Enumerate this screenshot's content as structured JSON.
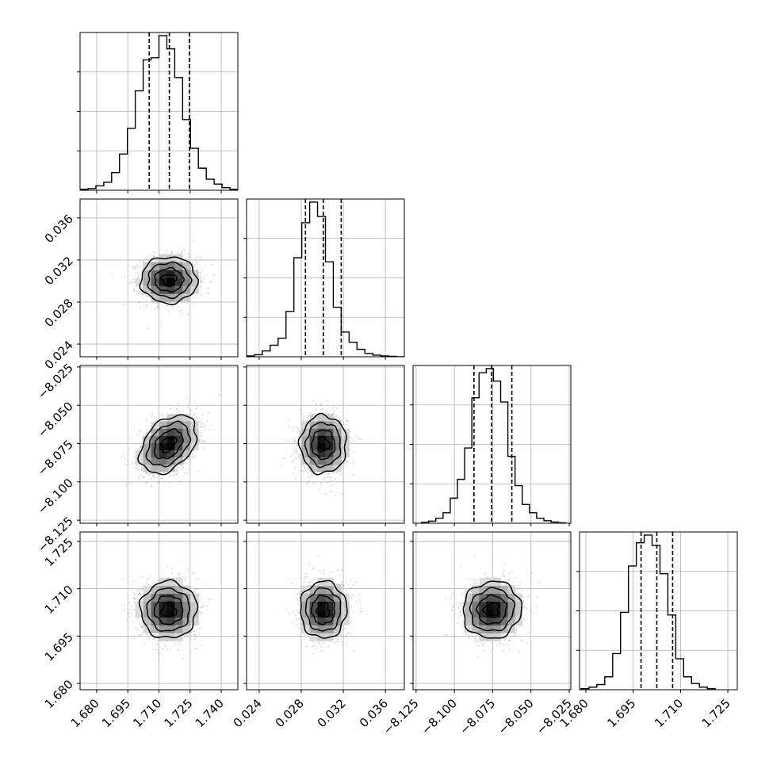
{
  "chart_data": {
    "type": "corner",
    "parameters": [
      {
        "index": 0,
        "range": [
          1.672,
          1.748
        ],
        "ticks": [
          "1.680",
          "1.695",
          "1.710",
          "1.725",
          "1.740"
        ],
        "quantiles": [
          1.7053,
          1.715,
          1.7247
        ],
        "hist": {
          "edges_start": 1.672,
          "bin_width": 0.0038,
          "counts": [
            2,
            4,
            10,
            18,
            40,
            82,
            140,
            225,
            295,
            300,
            350,
            320,
            255,
            160,
            95,
            50,
            25,
            14,
            6,
            2
          ]
        }
      },
      {
        "index": 1,
        "range": [
          0.0228,
          0.0378
        ],
        "ticks": [
          "0.024",
          "0.028",
          "0.032",
          "0.036"
        ],
        "quantiles": [
          0.0284,
          0.0301,
          0.0318
        ],
        "hist": {
          "edges_start": 0.0228,
          "bin_width": 0.00075,
          "counts": [
            2,
            5,
            14,
            28,
            45,
            110,
            240,
            325,
            375,
            340,
            230,
            120,
            60,
            35,
            18,
            8,
            4,
            2,
            1,
            0
          ]
        }
      },
      {
        "index": 2,
        "range": [
          -8.127,
          -8.024
        ],
        "ticks": [
          "-8.125",
          "-8.100",
          "-8.075",
          "-8.050",
          "-8.025"
        ],
        "quantiles": [
          -8.0872,
          -8.0757,
          -8.0625
        ],
        "hist": {
          "edges_start": -8.1215,
          "bin_width": 0.0047,
          "counts": [
            2,
            5,
            12,
            25,
            60,
            105,
            180,
            300,
            360,
            370,
            340,
            290,
            160,
            90,
            45,
            25,
            12,
            6,
            3,
            1
          ]
        }
      },
      {
        "index": 3,
        "range": [
          1.678,
          1.728
        ],
        "ticks": [
          "1.680",
          "1.695",
          "1.710",
          "1.725"
        ],
        "quantiles": [
          1.6975,
          1.7025,
          1.7075
        ],
        "hist": {
          "edges_start": 1.6785,
          "bin_width": 0.0025,
          "counts": [
            2,
            5,
            10,
            25,
            70,
            150,
            240,
            285,
            300,
            280,
            225,
            145,
            60,
            25,
            12,
            5,
            2
          ]
        }
      }
    ],
    "pairs": [
      {
        "row": 1,
        "col": 0,
        "center": [
          1.7148,
          0.0301
        ],
        "spread": [
          0.0068,
          0.0011
        ],
        "rho": 0.0
      },
      {
        "row": 2,
        "col": 0,
        "center": [
          1.7145,
          -8.0755
        ],
        "spread": [
          0.0068,
          0.0095
        ],
        "rho": 0.38
      },
      {
        "row": 2,
        "col": 1,
        "center": [
          0.0301,
          -8.0755
        ],
        "spread": [
          0.0011,
          0.0095
        ],
        "rho": 0.0
      },
      {
        "row": 3,
        "col": 0,
        "center": [
          1.7147,
          1.7033
        ],
        "spread": [
          0.0068,
          0.0045
        ],
        "rho": 0.0
      },
      {
        "row": 3,
        "col": 1,
        "center": [
          0.0301,
          1.7033
        ],
        "spread": [
          0.0011,
          0.0045
        ],
        "rho": 0.0
      },
      {
        "row": 3,
        "col": 2,
        "center": [
          -8.0755,
          1.7033
        ],
        "spread": [
          0.0095,
          0.0045
        ],
        "rho": 0.05
      }
    ],
    "contour_levels_sigma": [
      0.5,
      1.0,
      1.5,
      2.0
    ],
    "colors": {
      "line": "#000000",
      "grid": "#b0b0b0",
      "points": "#9a9a9a",
      "density_dark": "#000000",
      "density_light": "#ffffff"
    },
    "grid": true
  }
}
